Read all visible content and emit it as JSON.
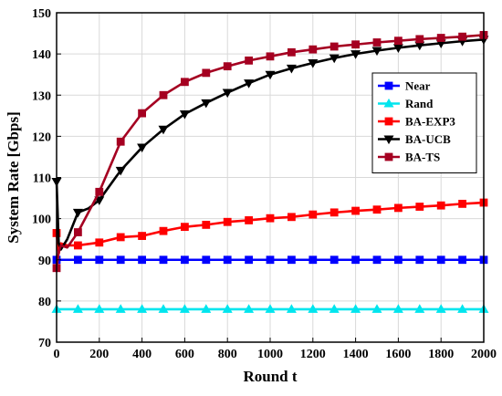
{
  "chart_data": {
    "type": "line",
    "xlabel": "Round t",
    "ylabel": "System Rate [Gbps]",
    "xlim": [
      0,
      2000
    ],
    "ylim": [
      70,
      150
    ],
    "x_ticks": [
      0,
      200,
      400,
      600,
      800,
      1000,
      1200,
      1400,
      1600,
      1800,
      2000
    ],
    "y_ticks": [
      70,
      80,
      90,
      100,
      110,
      120,
      130,
      140,
      150
    ],
    "grid": true,
    "legend_position": "right, middle",
    "series": [
      {
        "name": "Near",
        "color": "#0000ff",
        "marker": "square",
        "x": [
          0,
          100,
          200,
          300,
          400,
          500,
          600,
          700,
          800,
          900,
          1000,
          1100,
          1200,
          1300,
          1400,
          1500,
          1600,
          1700,
          1800,
          1900,
          2000
        ],
        "y": [
          90,
          90,
          90,
          90,
          90,
          90,
          90,
          90,
          90,
          90,
          90,
          90,
          90,
          90,
          90,
          90,
          90,
          90,
          90,
          90,
          90
        ]
      },
      {
        "name": "Rand",
        "color": "#00e5ee",
        "marker": "triangle-up",
        "x": [
          0,
          100,
          200,
          300,
          400,
          500,
          600,
          700,
          800,
          900,
          1000,
          1100,
          1200,
          1300,
          1400,
          1500,
          1600,
          1700,
          1800,
          1900,
          2000
        ],
        "y": [
          78,
          78,
          78,
          78,
          78,
          78,
          78,
          78,
          78,
          78,
          78,
          78,
          78,
          78,
          78,
          78,
          78,
          78,
          78,
          78,
          78
        ]
      },
      {
        "name": "BA-EXP3",
        "color": "#ff0000",
        "marker": "square",
        "x": [
          0,
          10,
          20,
          50,
          100,
          200,
          300,
          400,
          500,
          600,
          700,
          800,
          900,
          1000,
          1100,
          1200,
          1300,
          1400,
          1500,
          1600,
          1700,
          1800,
          1900,
          2000
        ],
        "y": [
          96.5,
          91.5,
          94,
          93.5,
          93.5,
          94.2,
          95.5,
          95.8,
          97,
          98,
          98.5,
          99.2,
          99.6,
          100.1,
          100.4,
          101,
          101.5,
          101.9,
          102.2,
          102.6,
          102.9,
          103.2,
          103.6,
          103.9
        ]
      },
      {
        "name": "BA-UCB",
        "color": "#000000",
        "marker": "triangle-down",
        "x": [
          0,
          10,
          20,
          50,
          100,
          150,
          200,
          300,
          400,
          500,
          600,
          700,
          800,
          900,
          1000,
          1100,
          1200,
          1300,
          1400,
          1500,
          1600,
          1700,
          1800,
          1900,
          2000
        ],
        "y": [
          109,
          94,
          92.5,
          95,
          101.5,
          102.5,
          104.5,
          111.7,
          117.3,
          121.7,
          125.4,
          128.1,
          130.6,
          132.9,
          135,
          136.5,
          137.8,
          139,
          140,
          140.8,
          141.5,
          142.1,
          142.6,
          143.1,
          143.5
        ]
      },
      {
        "name": "BA-TS",
        "color": "#a50021",
        "marker": "square",
        "x": [
          0,
          10,
          20,
          50,
          100,
          200,
          300,
          400,
          500,
          600,
          700,
          800,
          900,
          1000,
          1100,
          1200,
          1300,
          1400,
          1500,
          1600,
          1700,
          1800,
          1900,
          2000
        ],
        "y": [
          88,
          92,
          93.5,
          93,
          96.7,
          106.5,
          118.7,
          125.6,
          130,
          133.2,
          135.4,
          137,
          138.4,
          139.4,
          140.4,
          141.1,
          141.8,
          142.3,
          142.8,
          143.2,
          143.6,
          143.9,
          144.2,
          144.6
        ]
      }
    ]
  }
}
